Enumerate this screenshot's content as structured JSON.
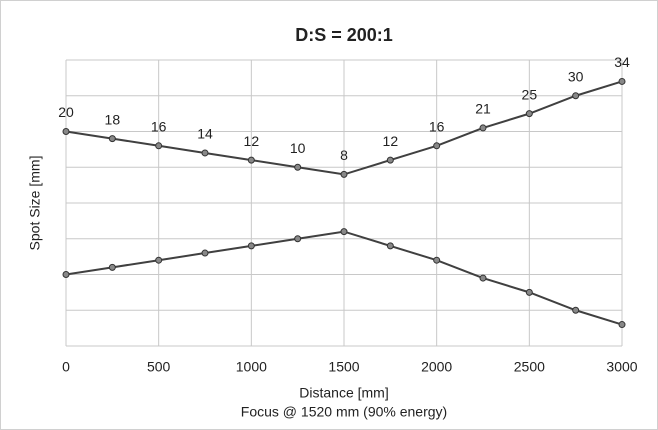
{
  "chart_data": {
    "type": "line",
    "title": "D:S = 200:1",
    "x_label": "Distance [mm]",
    "y_label": "Spot Size [mm]",
    "note": "Focus @ 1520 mm (90% energy)",
    "x": [
      0,
      250,
      500,
      750,
      1000,
      1250,
      1500,
      1750,
      2000,
      2250,
      2500,
      2750,
      3000
    ],
    "spot_sizes": [
      20,
      18,
      16,
      14,
      12,
      10,
      8,
      12,
      16,
      21,
      25,
      30,
      34
    ],
    "series": [
      {
        "color": "#404040",
        "values": [
          10,
          9,
          8,
          7,
          6,
          5,
          4,
          6,
          8,
          10.5,
          12.5,
          15,
          17
        ]
      },
      {
        "color": "#404040",
        "values": [
          -10,
          -9,
          -8,
          -7,
          -6,
          -5,
          -4,
          -6,
          -8,
          -10.5,
          -12.5,
          -15,
          -17
        ]
      }
    ],
    "xlim": [
      0,
      3000
    ],
    "xticks": [
      0,
      500,
      1000,
      1500,
      2000,
      2500,
      3000
    ],
    "ylim": [
      -20,
      20
    ],
    "yticks": [
      -20,
      -15,
      -10,
      -5,
      0,
      5,
      10,
      15,
      20
    ],
    "grid": true
  }
}
